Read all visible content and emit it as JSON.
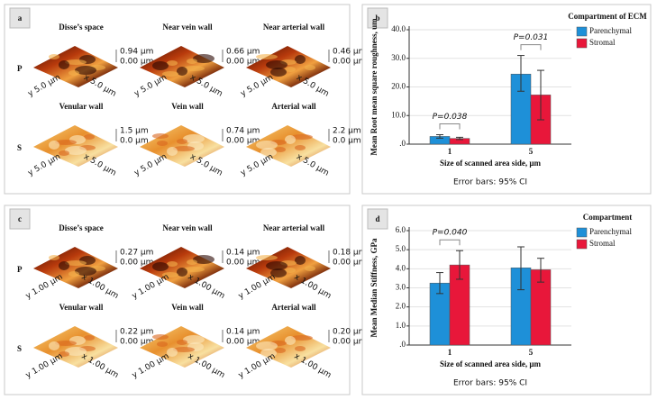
{
  "panels": [
    {
      "label": "a",
      "rows": [
        "P",
        "S"
      ],
      "images": [
        {
          "title": "Disse’s space",
          "zmax": "0.94 µm",
          "zmin": "0.00 µm",
          "y_axis": "y 5.0 µm",
          "x_axis": "x 5.0 µm"
        },
        {
          "title": "Near vein wall",
          "zmax": "0.66 µm",
          "zmin": "0.00 µm",
          "y_axis": "y 5.0 µm",
          "x_axis": "x 5.0 µm"
        },
        {
          "title": "Near arterial wall",
          "zmax": "0.46 µm",
          "zmin": "0.00 µm",
          "y_axis": "y 5.0 µm",
          "x_axis": "x 5.0 µm"
        },
        {
          "title": "Venular wall",
          "zmax": "1.5 µm",
          "zmin": "0.0 µm",
          "y_axis": "y 5.0 µm",
          "x_axis": "x 5.0 µm"
        },
        {
          "title": "Vein wall",
          "zmax": "0.74 µm",
          "zmin": "0.00 µm",
          "y_axis": "y 5.0 µm",
          "x_axis": "x 5.0 µm"
        },
        {
          "title": "Arterial wall",
          "zmax": "2.2 µm",
          "zmin": "0.0 µm",
          "y_axis": "y 5.0 µm",
          "x_axis": "x 5.0 µm"
        }
      ]
    },
    {
      "label": "c",
      "rows": [
        "P",
        "S"
      ],
      "images": [
        {
          "title": "Disse’s space",
          "zmax": "0.27 µm",
          "zmin": "0.00 µm",
          "y_axis": "y 1.00 µm",
          "x_axis": "x 1.00 µm"
        },
        {
          "title": "Near vein wall",
          "zmax": "0.14 µm",
          "zmin": "0.00 µm",
          "y_axis": "y 1.00 µm",
          "x_axis": "x 1.00 µm"
        },
        {
          "title": "Near arterial wall",
          "zmax": "0.18 µm",
          "zmin": "0.00 µm",
          "y_axis": "y 1.00 µm",
          "x_axis": "x 1.00 µm"
        },
        {
          "title": "Venular wall",
          "zmax": "0.22 µm",
          "zmin": "0.00 µm",
          "y_axis": "y 1.00 µm",
          "x_axis": "x 1.00 µm"
        },
        {
          "title": "Vein wall",
          "zmax": "0.14 µm",
          "zmin": "0.00 µm",
          "y_axis": "y 1.00 µm",
          "x_axis": "x 1.00 µm"
        },
        {
          "title": "Arterial wall",
          "zmax": "0.20 µm",
          "zmin": "0.00 µm",
          "y_axis": "y 1.00 µm",
          "x_axis": "x 1.00 µm"
        }
      ]
    }
  ],
  "chart_data": [
    {
      "type": "bar",
      "label": "b",
      "x_label": "Size of scanned area side, µm",
      "y_label": "Mean Root mean square roughness, um",
      "note": "Error bars: 95% CI",
      "legend_title": "Compartment of ECM",
      "categories": [
        "1",
        "5"
      ],
      "series": [
        {
          "name": "Parenchymal",
          "color": "#1e90d8",
          "values": [
            2.7,
            24.5
          ],
          "ci_low": [
            2.1,
            18.5
          ],
          "ci_high": [
            3.3,
            31.0
          ]
        },
        {
          "name": "Stromal",
          "color": "#e8173a",
          "values": [
            2.0,
            17.2
          ],
          "ci_low": [
            1.6,
            8.5
          ],
          "ci_high": [
            2.4,
            25.8
          ]
        }
      ],
      "annotations": [
        "P=0.038",
        "P=0.031"
      ],
      "ylim": [
        0,
        40
      ],
      "yticks": [
        {
          "value": 0,
          "label": ".0"
        },
        {
          "value": 10,
          "label": "10.0"
        },
        {
          "value": 20,
          "label": "20.0"
        },
        {
          "value": 30,
          "label": "30.0"
        },
        {
          "value": 40,
          "label": "40.0"
        }
      ],
      "grid": true
    },
    {
      "type": "bar",
      "label": "d",
      "x_label": "Size of scanned area side, µm",
      "y_label": "Mean Median Stiffness, GPa",
      "note": "Error bars: 95% CI",
      "legend_title": "Compartment",
      "categories": [
        "1",
        "5"
      ],
      "series": [
        {
          "name": "Parenchymal",
          "color": "#1e90d8",
          "values": [
            3.25,
            4.05
          ],
          "ci_low": [
            2.7,
            2.9
          ],
          "ci_high": [
            3.8,
            5.15
          ]
        },
        {
          "name": "Stromal",
          "color": "#e8173a",
          "values": [
            4.2,
            3.95
          ],
          "ci_low": [
            3.45,
            3.3
          ],
          "ci_high": [
            4.95,
            4.55
          ]
        }
      ],
      "annotations": [
        "P=0.040"
      ],
      "ylim": [
        0,
        6
      ],
      "yticks": [
        {
          "value": 0,
          "label": ".0"
        },
        {
          "value": 1,
          "label": "1.0"
        },
        {
          "value": 2,
          "label": "2.0"
        },
        {
          "value": 3,
          "label": "3.0"
        },
        {
          "value": 4,
          "label": "4.0"
        },
        {
          "value": 5,
          "label": "5.0"
        },
        {
          "value": 6,
          "label": "6.0"
        }
      ],
      "grid": true
    }
  ]
}
